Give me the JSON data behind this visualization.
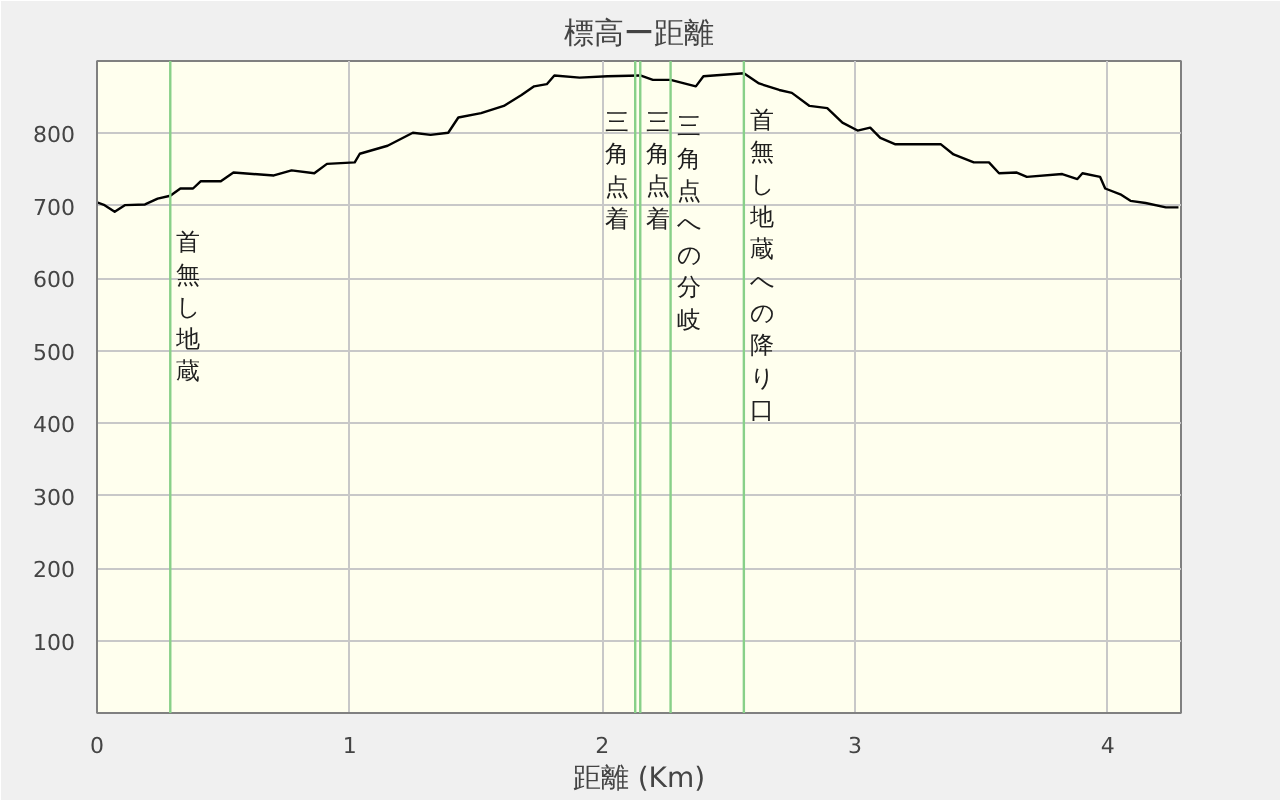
{
  "chart_data": {
    "type": "line",
    "title": "標高ー距離",
    "xlabel": "距離 (Km)",
    "x": [
      0,
      0.03,
      0.07,
      0.11,
      0.19,
      0.24,
      0.29,
      0.33,
      0.38,
      0.41,
      0.49,
      0.54,
      0.7,
      0.77,
      0.86,
      0.91,
      1.02,
      1.04,
      1.15,
      1.25,
      1.32,
      1.39,
      1.43,
      1.52,
      1.61,
      1.68,
      1.73,
      1.78,
      1.81,
      1.91,
      2.02,
      2.15,
      2.2,
      2.27,
      2.37,
      2.4,
      2.56,
      2.62,
      2.7,
      2.75,
      2.82,
      2.89,
      2.95,
      3.01,
      3.06,
      3.1,
      3.16,
      3.34,
      3.39,
      3.47,
      3.53,
      3.57,
      3.64,
      3.68,
      3.82,
      3.88,
      3.9,
      3.97,
      3.99,
      4.05,
      4.09,
      4.15,
      4.23,
      4.28
    ],
    "series": [
      {
        "color": "#000000",
        "values": [
          705,
          701,
          692,
          701,
          702,
          710,
          714,
          724,
          724,
          734,
          734,
          746,
          742,
          749,
          745,
          758,
          760,
          772,
          783,
          801,
          798,
          801,
          822,
          828,
          838,
          853,
          865,
          868,
          880,
          877,
          879,
          880,
          874,
          874,
          865,
          879,
          883,
          869,
          860,
          856,
          838,
          835,
          815,
          804,
          808,
          794,
          785,
          785,
          771,
          760,
          760,
          745,
          746,
          740,
          744,
          737,
          745,
          740,
          724,
          716,
          707,
          704,
          698,
          698
        ]
      }
    ],
    "xlim": [
      0,
      4.29
    ],
    "ylim": [
      0,
      900
    ],
    "xticks": [
      0,
      1,
      2,
      3,
      4
    ],
    "yticks": [
      100,
      200,
      300,
      400,
      500,
      600,
      700,
      800
    ],
    "grid": true,
    "marker": "none",
    "line_style": "solid",
    "ref_lines": [
      {
        "axis": "x",
        "value": 0.29,
        "label": "首無し地蔵",
        "color": "#88d088"
      },
      {
        "axis": "x",
        "value": 2.13,
        "label": "三角点着",
        "color": "#88d088"
      },
      {
        "axis": "x",
        "value": 2.15,
        "label": "三角点着",
        "color": "#88d088"
      },
      {
        "axis": "x",
        "value": 2.27,
        "label": "三角点への分岐",
        "color": "#88d088"
      },
      {
        "axis": "x",
        "value": 2.56,
        "label": "首無し地蔵への降り口",
        "color": "#88d088"
      }
    ]
  }
}
